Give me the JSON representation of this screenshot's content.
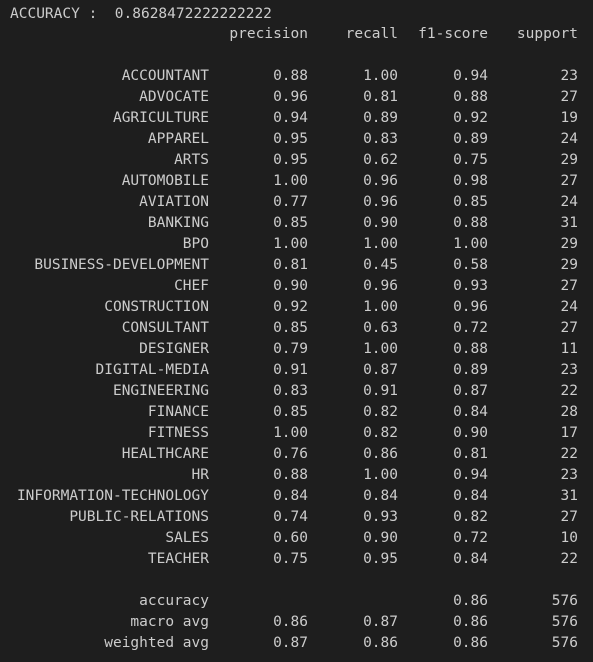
{
  "accuracy_line": {
    "label": "ACCURACY :",
    "value": "0.8628472222222222"
  },
  "header": {
    "precision": "precision",
    "recall": "recall",
    "f1": "f1-score",
    "support": "support"
  },
  "classes": [
    {
      "label": "ACCOUNTANT",
      "precision": "0.88",
      "recall": "1.00",
      "f1": "0.94",
      "support": "23"
    },
    {
      "label": "ADVOCATE",
      "precision": "0.96",
      "recall": "0.81",
      "f1": "0.88",
      "support": "27"
    },
    {
      "label": "AGRICULTURE",
      "precision": "0.94",
      "recall": "0.89",
      "f1": "0.92",
      "support": "19"
    },
    {
      "label": "APPAREL",
      "precision": "0.95",
      "recall": "0.83",
      "f1": "0.89",
      "support": "24"
    },
    {
      "label": "ARTS",
      "precision": "0.95",
      "recall": "0.62",
      "f1": "0.75",
      "support": "29"
    },
    {
      "label": "AUTOMOBILE",
      "precision": "1.00",
      "recall": "0.96",
      "f1": "0.98",
      "support": "27"
    },
    {
      "label": "AVIATION",
      "precision": "0.77",
      "recall": "0.96",
      "f1": "0.85",
      "support": "24"
    },
    {
      "label": "BANKING",
      "precision": "0.85",
      "recall": "0.90",
      "f1": "0.88",
      "support": "31"
    },
    {
      "label": "BPO",
      "precision": "1.00",
      "recall": "1.00",
      "f1": "1.00",
      "support": "29"
    },
    {
      "label": "BUSINESS-DEVELOPMENT",
      "precision": "0.81",
      "recall": "0.45",
      "f1": "0.58",
      "support": "29"
    },
    {
      "label": "CHEF",
      "precision": "0.90",
      "recall": "0.96",
      "f1": "0.93",
      "support": "27"
    },
    {
      "label": "CONSTRUCTION",
      "precision": "0.92",
      "recall": "1.00",
      "f1": "0.96",
      "support": "24"
    },
    {
      "label": "CONSULTANT",
      "precision": "0.85",
      "recall": "0.63",
      "f1": "0.72",
      "support": "27"
    },
    {
      "label": "DESIGNER",
      "precision": "0.79",
      "recall": "1.00",
      "f1": "0.88",
      "support": "11"
    },
    {
      "label": "DIGITAL-MEDIA",
      "precision": "0.91",
      "recall": "0.87",
      "f1": "0.89",
      "support": "23"
    },
    {
      "label": "ENGINEERING",
      "precision": "0.83",
      "recall": "0.91",
      "f1": "0.87",
      "support": "22"
    },
    {
      "label": "FINANCE",
      "precision": "0.85",
      "recall": "0.82",
      "f1": "0.84",
      "support": "28"
    },
    {
      "label": "FITNESS",
      "precision": "1.00",
      "recall": "0.82",
      "f1": "0.90",
      "support": "17"
    },
    {
      "label": "HEALTHCARE",
      "precision": "0.76",
      "recall": "0.86",
      "f1": "0.81",
      "support": "22"
    },
    {
      "label": "HR",
      "precision": "0.88",
      "recall": "1.00",
      "f1": "0.94",
      "support": "23"
    },
    {
      "label": "INFORMATION-TECHNOLOGY",
      "precision": "0.84",
      "recall": "0.84",
      "f1": "0.84",
      "support": "31"
    },
    {
      "label": "PUBLIC-RELATIONS",
      "precision": "0.74",
      "recall": "0.93",
      "f1": "0.82",
      "support": "27"
    },
    {
      "label": "SALES",
      "precision": "0.60",
      "recall": "0.90",
      "f1": "0.72",
      "support": "10"
    },
    {
      "label": "TEACHER",
      "precision": "0.75",
      "recall": "0.95",
      "f1": "0.84",
      "support": "22"
    }
  ],
  "summary": [
    {
      "label": "accuracy",
      "precision": "",
      "recall": "",
      "f1": "0.86",
      "support": "576"
    },
    {
      "label": "macro avg",
      "precision": "0.86",
      "recall": "0.87",
      "f1": "0.86",
      "support": "576"
    },
    {
      "label": "weighted avg",
      "precision": "0.87",
      "recall": "0.86",
      "f1": "0.86",
      "support": "576"
    }
  ],
  "theme": {
    "background": "#1e1e1e",
    "text": "#cccccc"
  }
}
